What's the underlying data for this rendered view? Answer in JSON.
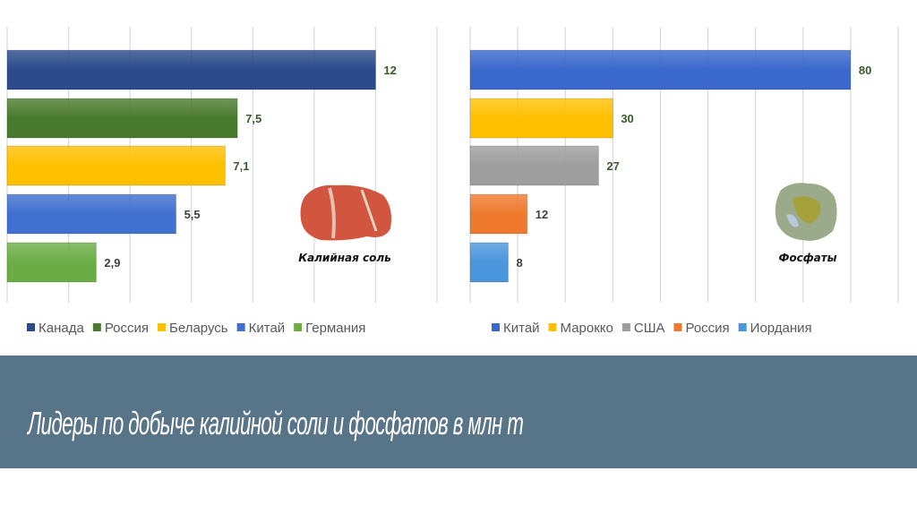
{
  "title": "Лидеры по добыче калийной соли и фосфатов в млн т",
  "chart_data": [
    {
      "type": "bar",
      "orientation": "horizontal",
      "title": "",
      "mineral_label": "Калийная соль",
      "categories": [
        "Канада",
        "Россия",
        "Беларусь",
        "Китай",
        "Германия"
      ],
      "values": [
        12,
        7.5,
        7.1,
        5.5,
        2.9
      ],
      "value_labels": [
        "12",
        "7,5",
        "7,1",
        "5,5",
        "2,9"
      ],
      "colors": [
        "#2a4a8a",
        "#4a7a2e",
        "#ffc000",
        "#3f6fd0",
        "#6aad45"
      ],
      "label_colors": [
        "#3a5a2a",
        "#3a5a2a",
        "#3a5a2a",
        "#404040",
        "#404040"
      ],
      "xlim": [
        0,
        14
      ],
      "grid_step": 2,
      "grid": true,
      "legend_position": "bottom"
    },
    {
      "type": "bar",
      "orientation": "horizontal",
      "title": "",
      "mineral_label": "Фосфаты",
      "categories": [
        "Китай",
        "Марокко",
        "США",
        "Россия",
        "Иордания"
      ],
      "values": [
        80,
        30,
        27,
        12,
        8
      ],
      "value_labels": [
        "80",
        "30",
        "27",
        "12",
        "8"
      ],
      "colors": [
        "#3a68cc",
        "#ffc000",
        "#9e9e9e",
        "#ef7a2e",
        "#4a96dc"
      ],
      "label_colors": [
        "#3a5a2a",
        "#3a5a2a",
        "#3a5a2a",
        "#404040",
        "#404040"
      ],
      "xlim": [
        0,
        90
      ],
      "grid_step": 10,
      "grid": true,
      "legend_position": "bottom"
    }
  ]
}
